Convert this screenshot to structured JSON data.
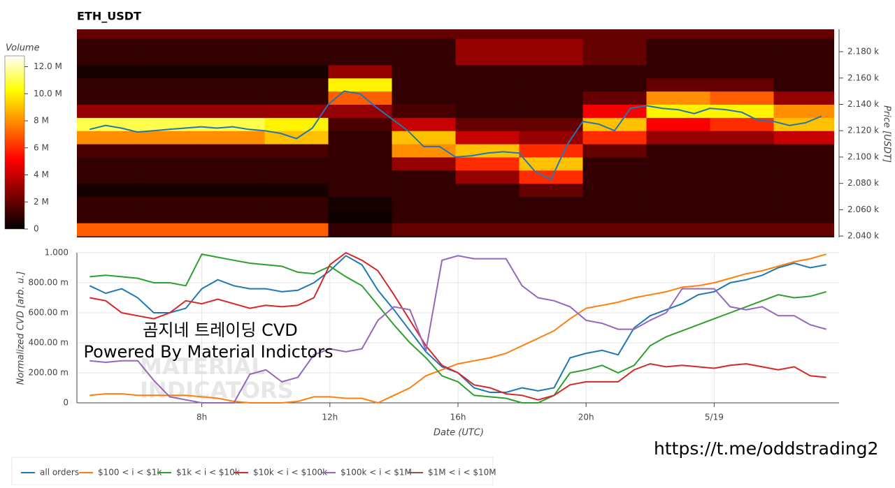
{
  "chart_data": [
    {
      "type": "heatmap",
      "title": "ETH_USDT",
      "x_bins": [
        4,
        6,
        8,
        10,
        12,
        14,
        16,
        18,
        20,
        22,
        24,
        26,
        28
      ],
      "y_bins": [
        2040,
        2050,
        2060,
        2070,
        2080,
        2090,
        2100,
        2110,
        2120,
        2130,
        2140,
        2150,
        2160,
        2170,
        2180,
        2190,
        2200
      ],
      "values": [
        [
          7,
          1,
          1,
          0.5,
          1,
          1,
          1.5,
          8,
          11,
          3,
          1,
          1,
          0.5,
          1,
          1,
          2
        ],
        [
          7,
          1,
          1,
          0.5,
          1,
          1,
          1.5,
          8,
          11,
          3,
          1,
          1,
          0.5,
          1,
          1,
          2
        ],
        [
          7,
          1,
          1,
          0.5,
          1,
          1,
          1.5,
          8,
          11,
          3,
          1,
          1,
          0.5,
          1,
          1,
          2
        ],
        [
          7,
          1,
          1,
          0.5,
          1,
          1,
          1.5,
          9,
          10,
          3,
          1,
          1,
          0.5,
          1,
          1,
          2
        ],
        [
          1,
          0.3,
          0.5,
          1,
          1,
          1,
          1,
          1,
          1.5,
          3,
          7,
          10,
          3,
          1,
          1,
          2
        ],
        [
          2,
          1,
          1,
          1,
          1,
          3,
          8,
          9,
          4,
          1.5,
          1,
          1,
          1,
          1,
          1,
          2
        ],
        [
          2,
          1,
          1,
          1,
          3,
          6,
          9,
          4,
          2,
          1,
          1,
          1,
          1,
          3,
          3,
          2
        ],
        [
          2,
          1,
          1,
          2,
          6,
          9,
          6,
          3,
          2,
          1,
          1,
          1,
          1,
          3,
          3,
          2
        ],
        [
          2,
          1,
          1,
          1,
          1,
          1,
          2,
          6,
          9,
          5,
          2,
          1,
          1,
          2,
          2,
          2
        ],
        [
          2,
          1,
          1,
          1,
          1,
          1,
          1,
          3,
          5,
          10,
          8,
          2,
          1,
          1,
          1,
          2
        ],
        [
          2,
          1,
          1,
          1,
          1,
          1,
          1,
          3,
          6,
          10,
          7,
          2,
          1,
          1,
          1,
          2
        ],
        [
          2,
          1,
          1,
          1,
          1,
          1,
          1,
          4,
          9,
          8,
          3,
          1,
          1,
          1,
          1,
          2
        ]
      ],
      "colormap": "hot",
      "colorbar": {
        "title": "Volume",
        "lim": [
          0,
          12.8
        ],
        "ticks": [
          0,
          {
            "value": 2,
            "label": "2 M"
          },
          {
            "value": 4,
            "label": "4 M"
          },
          {
            "value": 6,
            "label": "6 M"
          },
          {
            "value": 8,
            "label": "8 M"
          },
          {
            "value": 10,
            "label": "10.0 M"
          },
          {
            "value": 12,
            "label": "12.0 M"
          }
        ]
      },
      "price_line": {
        "color": "#1f77b4",
        "x": [
          4.5,
          5,
          5.5,
          6,
          6.5,
          7,
          7.5,
          8,
          8.5,
          9,
          9.5,
          10,
          10.5,
          11,
          11.5,
          12,
          12.5,
          13,
          13.5,
          14,
          14.5,
          15,
          15.5,
          16,
          16.5,
          17,
          17.5,
          18,
          18.5,
          19,
          19.5,
          20,
          20.5,
          21,
          21.5,
          22,
          22.5,
          23,
          23.5,
          24,
          24.5,
          25,
          25.5,
          26,
          26.5,
          27,
          27.5
        ],
        "values": [
          2121,
          2124,
          2122,
          2119,
          2120,
          2121,
          2122,
          2123,
          2122,
          2123,
          2121,
          2120,
          2118,
          2114,
          2122,
          2140,
          2150,
          2148,
          2138,
          2129,
          2120,
          2108,
          2108,
          2100,
          2101,
          2103,
          2104,
          2103,
          2089,
          2083,
          2109,
          2127,
          2125,
          2120,
          2137,
          2139,
          2137,
          2136,
          2133,
          2137,
          2136,
          2134,
          2128,
          2127,
          2124,
          2126,
          2131
        ]
      },
      "xlim": [
        4.1,
        27.9
      ],
      "ylim": [
        2039,
        2197
      ],
      "ylabel": "Price [USDT]",
      "yticks": [
        {
          "value": 2040,
          "label": "2.040 k"
        },
        {
          "value": 2060,
          "label": "2.060 k"
        },
        {
          "value": 2080,
          "label": "2.080 k"
        },
        {
          "value": 2100,
          "label": "2.100 k"
        },
        {
          "value": 2120,
          "label": "2.120 k"
        },
        {
          "value": 2140,
          "label": "2.140 k"
        },
        {
          "value": 2160,
          "label": "2.160 k"
        },
        {
          "value": 2180,
          "label": "2.180 k"
        }
      ]
    },
    {
      "type": "line",
      "x": [
        4.5,
        5,
        5.5,
        6,
        6.5,
        7,
        7.5,
        8,
        8.5,
        9,
        9.5,
        10,
        10.5,
        11,
        11.5,
        12,
        12.5,
        13,
        13.5,
        14,
        14.5,
        15,
        15.5,
        16,
        16.5,
        17,
        17.5,
        18,
        18.5,
        19,
        19.5,
        20,
        20.5,
        21,
        21.5,
        22,
        22.5,
        23,
        23.5,
        24,
        24.5,
        25,
        25.5,
        26,
        26.5,
        27,
        27.5
      ],
      "series": [
        {
          "name": "all orders",
          "color": "#1f77b4",
          "values": [
            0.78,
            0.73,
            0.76,
            0.7,
            0.6,
            0.6,
            0.63,
            0.76,
            0.82,
            0.78,
            0.76,
            0.76,
            0.74,
            0.75,
            0.8,
            0.88,
            0.98,
            0.92,
            0.75,
            0.62,
            0.48,
            0.34,
            0.24,
            0.2,
            0.1,
            0.07,
            0.07,
            0.1,
            0.08,
            0.1,
            0.3,
            0.33,
            0.35,
            0.32,
            0.5,
            0.58,
            0.62,
            0.66,
            0.72,
            0.74,
            0.8,
            0.82,
            0.85,
            0.9,
            0.93,
            0.9,
            0.92
          ]
        },
        {
          "name": "$100 < i < $1k",
          "color": "#ff7f0e",
          "values": [
            0.05,
            0.06,
            0.06,
            0.05,
            0.05,
            0.05,
            0.05,
            0.04,
            0.03,
            0.01,
            0,
            0,
            0,
            0.01,
            0.04,
            0.04,
            0.03,
            0.03,
            0,
            0.05,
            0.1,
            0.18,
            0.22,
            0.26,
            0.28,
            0.3,
            0.33,
            0.38,
            0.43,
            0.48,
            0.56,
            0.63,
            0.65,
            0.67,
            0.7,
            0.72,
            0.74,
            0.77,
            0.78,
            0.8,
            0.83,
            0.86,
            0.88,
            0.91,
            0.94,
            0.96,
            0.99
          ]
        },
        {
          "name": "$1k < i < $10k",
          "color": "#2ca02c",
          "values": [
            0.84,
            0.85,
            0.84,
            0.83,
            0.8,
            0.8,
            0.78,
            0.99,
            0.97,
            0.95,
            0.93,
            0.92,
            0.91,
            0.87,
            0.86,
            0.91,
            0.84,
            0.78,
            0.65,
            0.52,
            0.4,
            0.3,
            0.18,
            0.14,
            0.05,
            0.04,
            0.03,
            0,
            0,
            0.05,
            0.2,
            0.22,
            0.25,
            0.2,
            0.25,
            0.38,
            0.44,
            0.48,
            0.52,
            0.56,
            0.6,
            0.64,
            0.68,
            0.72,
            0.7,
            0.71,
            0.74
          ]
        },
        {
          "name": "$10k < i < $100k",
          "color": "#d62728",
          "values": [
            0.7,
            0.68,
            0.6,
            0.58,
            0.56,
            0.6,
            0.68,
            0.66,
            0.69,
            0.66,
            0.63,
            0.65,
            0.64,
            0.65,
            0.7,
            0.92,
            1.0,
            0.95,
            0.88,
            0.72,
            0.55,
            0.38,
            0.25,
            0.2,
            0.12,
            0.1,
            0.06,
            0.05,
            0.02,
            0.05,
            0.12,
            0.14,
            0.14,
            0.14,
            0.22,
            0.26,
            0.24,
            0.25,
            0.24,
            0.23,
            0.25,
            0.26,
            0.24,
            0.22,
            0.24,
            0.18,
            0.17
          ]
        },
        {
          "name": "$100k < i < $1M",
          "color": "#9467bd",
          "values": [
            0.28,
            0.27,
            0.28,
            0.28,
            0.15,
            0.04,
            0.02,
            0,
            0,
            0,
            0.19,
            0.22,
            0.14,
            0.17,
            0.32,
            0.36,
            0.34,
            0.36,
            0.55,
            0.64,
            0.62,
            0.35,
            0.95,
            0.98,
            0.96,
            0.96,
            0.96,
            0.78,
            0.7,
            0.68,
            0.64,
            0.55,
            0.53,
            0.49,
            0.49,
            0.55,
            0.6,
            0.76,
            0.76,
            0.76,
            0.64,
            0.62,
            0.64,
            0.58,
            0.58,
            0.52,
            0.49
          ]
        },
        {
          "name": "$1M < i < $10M",
          "color": "#8c564b",
          "values": [
            null,
            null,
            null,
            null,
            null,
            null,
            null,
            null,
            null,
            null,
            null,
            null,
            null,
            null,
            null,
            null,
            null,
            null,
            null,
            null,
            null,
            null,
            null,
            null,
            null,
            null,
            null,
            null,
            null,
            null,
            null,
            null,
            null,
            null,
            null,
            null,
            null,
            null,
            null,
            null,
            null,
            null,
            null,
            null,
            null,
            null,
            null
          ]
        }
      ],
      "xlim": [
        4.1,
        27.9
      ],
      "xticks": [
        {
          "value": 8,
          "label": "8h"
        },
        {
          "value": 12,
          "label": "12h"
        },
        {
          "value": 16,
          "label": "16h"
        },
        {
          "value": 20,
          "label": "20h"
        },
        {
          "value": 24,
          "label": "5/19"
        }
      ],
      "xlabel": "Date (UTC)",
      "ylim": [
        0,
        1
      ],
      "yticks": [
        0,
        {
          "value": 0.2,
          "label": "200.00 m"
        },
        {
          "value": 0.4,
          "label": "400.00 m"
        },
        {
          "value": 0.6,
          "label": "600.00 m"
        },
        {
          "value": 0.8,
          "label": "800.00 m"
        },
        {
          "value": 1,
          "label": "1.000"
        }
      ],
      "ylabel": "Normalized CVD [arb. u.]",
      "grid": true,
      "legend": "bottom-left",
      "annotations": [
        "곰지네 트레이딩 CVD",
        "Powered By Material Indictors"
      ],
      "watermark": [
        "MATERIAL",
        "INDICATORS"
      ]
    }
  ],
  "footer": {
    "url": "https://t.me/oddstrading2"
  }
}
